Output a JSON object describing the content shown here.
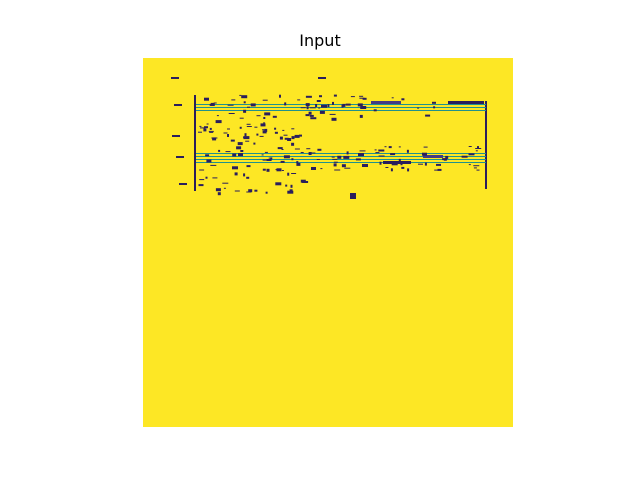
{
  "figure": {
    "title": "Input"
  },
  "image": {
    "description_kind": "binarized sheet-music score rendered with viridis colormap",
    "colors": {
      "background": "#fde725",
      "ink": "#2a1e5c",
      "staff_line": "#21918c",
      "accent": "#443a83"
    }
  }
}
